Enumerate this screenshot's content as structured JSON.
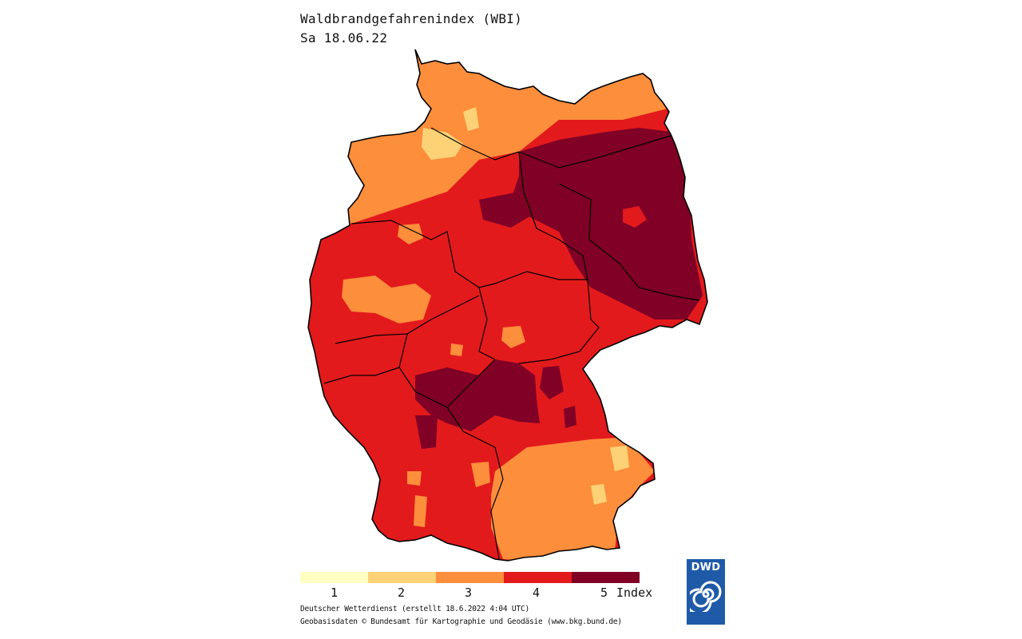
{
  "header": {
    "title": "Waldbrandgefahrenindex (WBI)",
    "date": "Sa 18.06.22"
  },
  "legend": {
    "classes": [
      {
        "label": "1",
        "color": "#ffffc4"
      },
      {
        "label": "2",
        "color": "#fdd276"
      },
      {
        "label": "3",
        "color": "#fd8e3c"
      },
      {
        "label": "4",
        "color": "#e31a1c"
      },
      {
        "label": "5",
        "color": "#800026"
      }
    ],
    "unit_label": "Index"
  },
  "footer": {
    "credit_line1": "Deutscher Wetterdienst (erstellt 18.6.2022 4:04 UTC)",
    "credit_line2": "Geobasisdaten © Bundesamt für Kartographie und Geodäsie (www.bkg.bund.de)"
  },
  "logo": {
    "text": "DWD"
  }
}
